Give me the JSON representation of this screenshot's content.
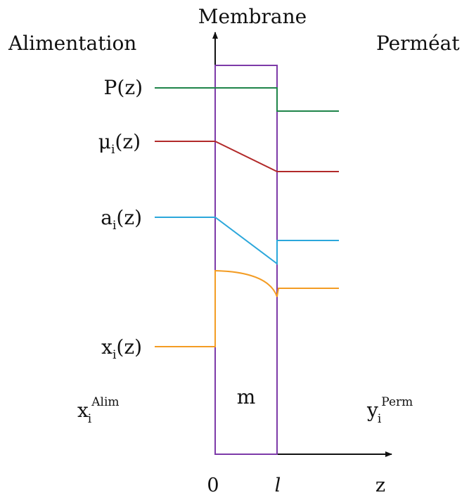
{
  "headings": {
    "membrane": "Membrane",
    "feed": "Alimentation",
    "permeate": "Perméat"
  },
  "curves": {
    "pressure": {
      "symbol": "P",
      "arg": "(z)",
      "color": "#1e8449"
    },
    "chemical_potential": {
      "symbol": "μ",
      "sub": "i",
      "arg": "(z)",
      "color": "#b22a2a"
    },
    "activity": {
      "symbol": "a",
      "sub": "i",
      "arg": "(z)",
      "color": "#2ba7db"
    },
    "mole_fraction": {
      "symbol": "x",
      "sub": "i",
      "arg": "(z)",
      "color": "#f39c24"
    }
  },
  "compositions": {
    "feed": {
      "symbol": "x",
      "sub": "i",
      "sup": "Alim"
    },
    "permeate": {
      "symbol": "y",
      "sub": "i",
      "sup": "Perm"
    }
  },
  "membrane_label": "m",
  "membrane_color": "#7d3aa8",
  "axis": {
    "origin": "0",
    "thickness": "l",
    "z": "z"
  }
}
